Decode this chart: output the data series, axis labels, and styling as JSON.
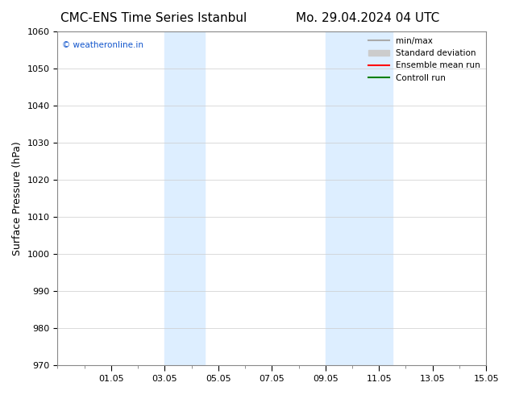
{
  "title_left": "CMC-ENS Time Series Istanbul",
  "title_right": "Mo. 29.04.2024 04 UTC",
  "ylabel": "Surface Pressure (hPa)",
  "ylim": [
    970,
    1060
  ],
  "yticks": [
    970,
    980,
    990,
    1000,
    1010,
    1020,
    1030,
    1040,
    1050,
    1060
  ],
  "shaded_bands": [
    {
      "xstart": 4.0,
      "xend": 5.5
    },
    {
      "xstart": 10.0,
      "xend": 12.5
    }
  ],
  "band_color": "#ddeeff",
  "xtick_positions": [
    2,
    4,
    6,
    8,
    10,
    12,
    14,
    16
  ],
  "xtick_labels": [
    "01.05",
    "03.05",
    "05.05",
    "07.05",
    "09.05",
    "11.05",
    "13.05",
    "15.05"
  ],
  "xlim": [
    0,
    16
  ],
  "watermark": "© weatheronline.in",
  "watermark_color": "#1155cc",
  "legend_min_max_color": "#aaaaaa",
  "legend_std_color": "#cccccc",
  "legend_mean_color": "#ff0000",
  "legend_control_color": "#008000",
  "background_color": "#ffffff",
  "title_fontsize": 11,
  "tick_fontsize": 8,
  "ylabel_fontsize": 9
}
